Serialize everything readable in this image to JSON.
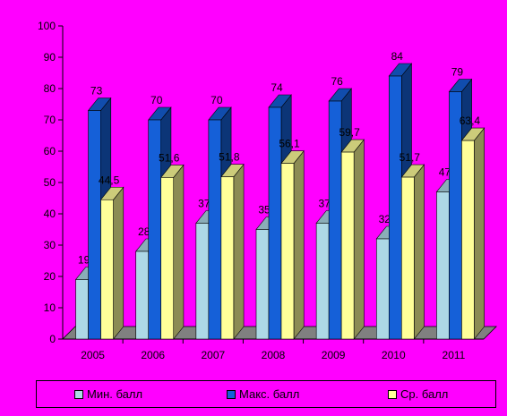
{
  "chart_data": {
    "type": "bar",
    "categories": [
      "2005",
      "2006",
      "2007",
      "2008",
      "2009",
      "2010",
      "2011"
    ],
    "series": [
      {
        "name": "Мин. балл",
        "values": [
          19,
          28,
          37,
          35,
          37,
          32,
          47
        ],
        "labels": [
          "19",
          "28",
          "37",
          "35",
          "37",
          "32",
          "47"
        ],
        "color": "#ADD8E6"
      },
      {
        "name": "Макс. балл",
        "values": [
          73,
          70,
          70,
          74,
          76,
          84,
          79
        ],
        "labels": [
          "73",
          "70",
          "70",
          "74",
          "76",
          "84",
          "79"
        ],
        "color": "#1560D8"
      },
      {
        "name": "Ср. балл",
        "values": [
          44.5,
          51.6,
          51.8,
          56.1,
          59.7,
          51.7,
          63.4
        ],
        "labels": [
          "44,5",
          "51,6",
          "51,8",
          "56,1",
          "59,7",
          "51,7",
          "63,4"
        ],
        "color": "#FFFF99"
      }
    ],
    "yticks": [
      "0",
      "10",
      "20",
      "30",
      "40",
      "50",
      "60",
      "70",
      "80",
      "90",
      "100"
    ],
    "ylim": [
      0,
      100
    ],
    "title": "",
    "xlabel": "",
    "ylabel": "",
    "grid": false,
    "legend": "bottom",
    "three_d": true
  }
}
